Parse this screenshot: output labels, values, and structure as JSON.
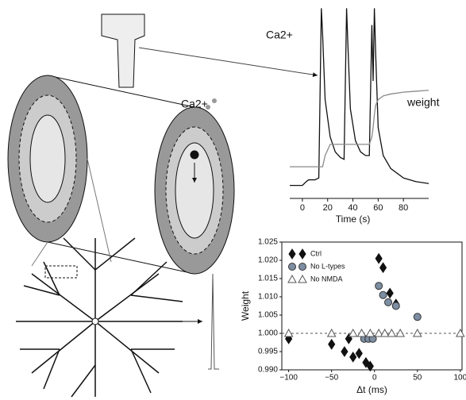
{
  "diagram": {
    "labels": [
      "Ca2+"
    ]
  },
  "chart_data": [
    {
      "type": "line",
      "xlabel": "Time (s)",
      "xlim": [
        -10,
        100
      ],
      "ylim": [
        0,
        1
      ],
      "xticks": [
        0,
        20,
        40,
        60,
        80
      ],
      "x": [
        -10,
        0,
        3,
        5,
        10,
        13,
        15,
        16,
        18,
        22,
        26,
        30,
        33,
        35,
        36,
        38,
        42,
        46,
        50,
        53,
        55,
        56,
        57,
        58,
        60,
        64,
        70,
        80,
        90,
        100
      ],
      "series": [
        {
          "name": "Ca2+",
          "color": "#111111",
          "values": [
            0.04,
            0.04,
            0.06,
            0.07,
            0.07,
            0.08,
            0.99,
            0.85,
            0.5,
            0.3,
            0.22,
            0.19,
            0.18,
            0.99,
            0.8,
            0.45,
            0.28,
            0.22,
            0.2,
            0.2,
            0.9,
            0.6,
            0.99,
            0.75,
            0.35,
            0.2,
            0.13,
            0.08,
            0.06,
            0.05
          ]
        },
        {
          "name": "weight",
          "color": "#8a8a8a",
          "values": [
            0.14,
            0.14,
            0.14,
            0.14,
            0.14,
            0.14,
            0.14,
            0.14,
            0.2,
            0.26,
            0.26,
            0.26,
            0.26,
            0.26,
            0.26,
            0.26,
            0.26,
            0.26,
            0.26,
            0.26,
            0.3,
            0.35,
            0.42,
            0.47,
            0.5,
            0.52,
            0.53,
            0.54,
            0.545,
            0.55
          ]
        }
      ]
    },
    {
      "type": "scatter",
      "xlabel": "Δt (ms)",
      "ylabel": "Weight",
      "xlim": [
        -108,
        102
      ],
      "ylim": [
        0.99,
        1.025
      ],
      "xticks": [
        {
          "value": -100,
          "label": "−100"
        },
        {
          "value": -50,
          "label": "−50"
        },
        0,
        50,
        100
      ],
      "yticks": [
        {
          "value": 0.99,
          "label": "0.990"
        },
        0.995,
        {
          "value": 1,
          "label": "1.000"
        },
        1.005,
        {
          "value": 1.01,
          "label": "1.010"
        },
        1.015,
        {
          "value": 1.02,
          "label": "1.020"
        },
        1.025
      ],
      "reference_line": 1,
      "legend": "upper left",
      "series": [
        {
          "name": "Ctrl",
          "color": "#111111",
          "marker": "diamond",
          "x": [
            -100,
            -50,
            -35,
            -30,
            -25,
            -18,
            -10,
            -5,
            5,
            10,
            18,
            25
          ],
          "values": [
            0.9985,
            0.997,
            0.995,
            0.9985,
            0.9935,
            0.9945,
            0.992,
            0.991,
            1.0205,
            1.018,
            1.011,
            1.008
          ]
        },
        {
          "name": "No L-types",
          "color": "#7d8ea3",
          "marker": "circle",
          "x": [
            -12,
            -7,
            -2,
            5,
            10,
            16,
            25,
            50
          ],
          "values": [
            0.9985,
            0.9985,
            0.9985,
            1.013,
            1.0105,
            1.0085,
            1.0075,
            1.0045
          ]
        },
        {
          "name": "No NMDA",
          "color": "#ffffff",
          "marker": "triangle",
          "x": [
            -100,
            -50,
            -25,
            -15,
            -5,
            5,
            12,
            20,
            30,
            50,
            100
          ],
          "values": [
            1,
            1,
            1,
            1,
            1,
            1,
            1,
            1,
            1,
            1,
            1
          ]
        }
      ]
    }
  ]
}
